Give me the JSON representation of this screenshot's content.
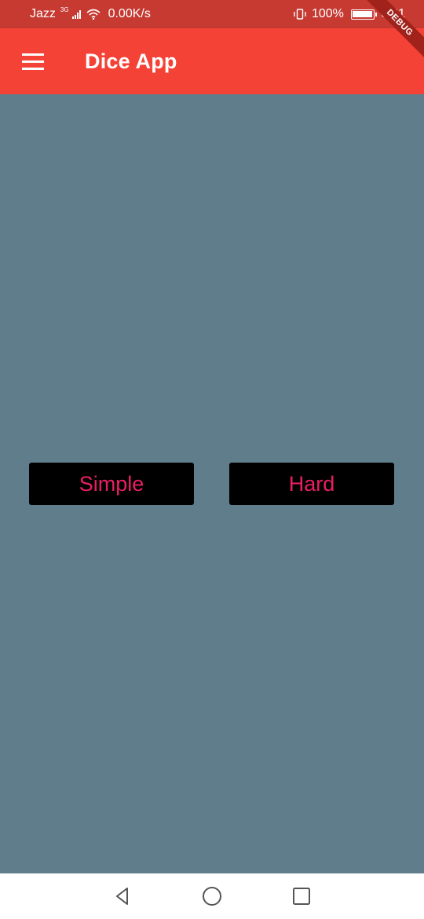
{
  "status_bar": {
    "carrier": "Jazz",
    "network": "3G",
    "speed": "0.00K/s",
    "battery": "100%",
    "time": "6:01"
  },
  "debug_banner": "DEBUG",
  "app_bar": {
    "title": "Dice App",
    "color": "#F44336"
  },
  "main": {
    "background": "#607D8B",
    "buttons": [
      {
        "label": "Simple"
      },
      {
        "label": "Hard"
      }
    ],
    "button_bg": "#000000",
    "button_text_color": "#E91E63"
  },
  "nav_bar": {
    "back": "back-triangle",
    "home": "home-circle",
    "recents": "recents-square"
  }
}
